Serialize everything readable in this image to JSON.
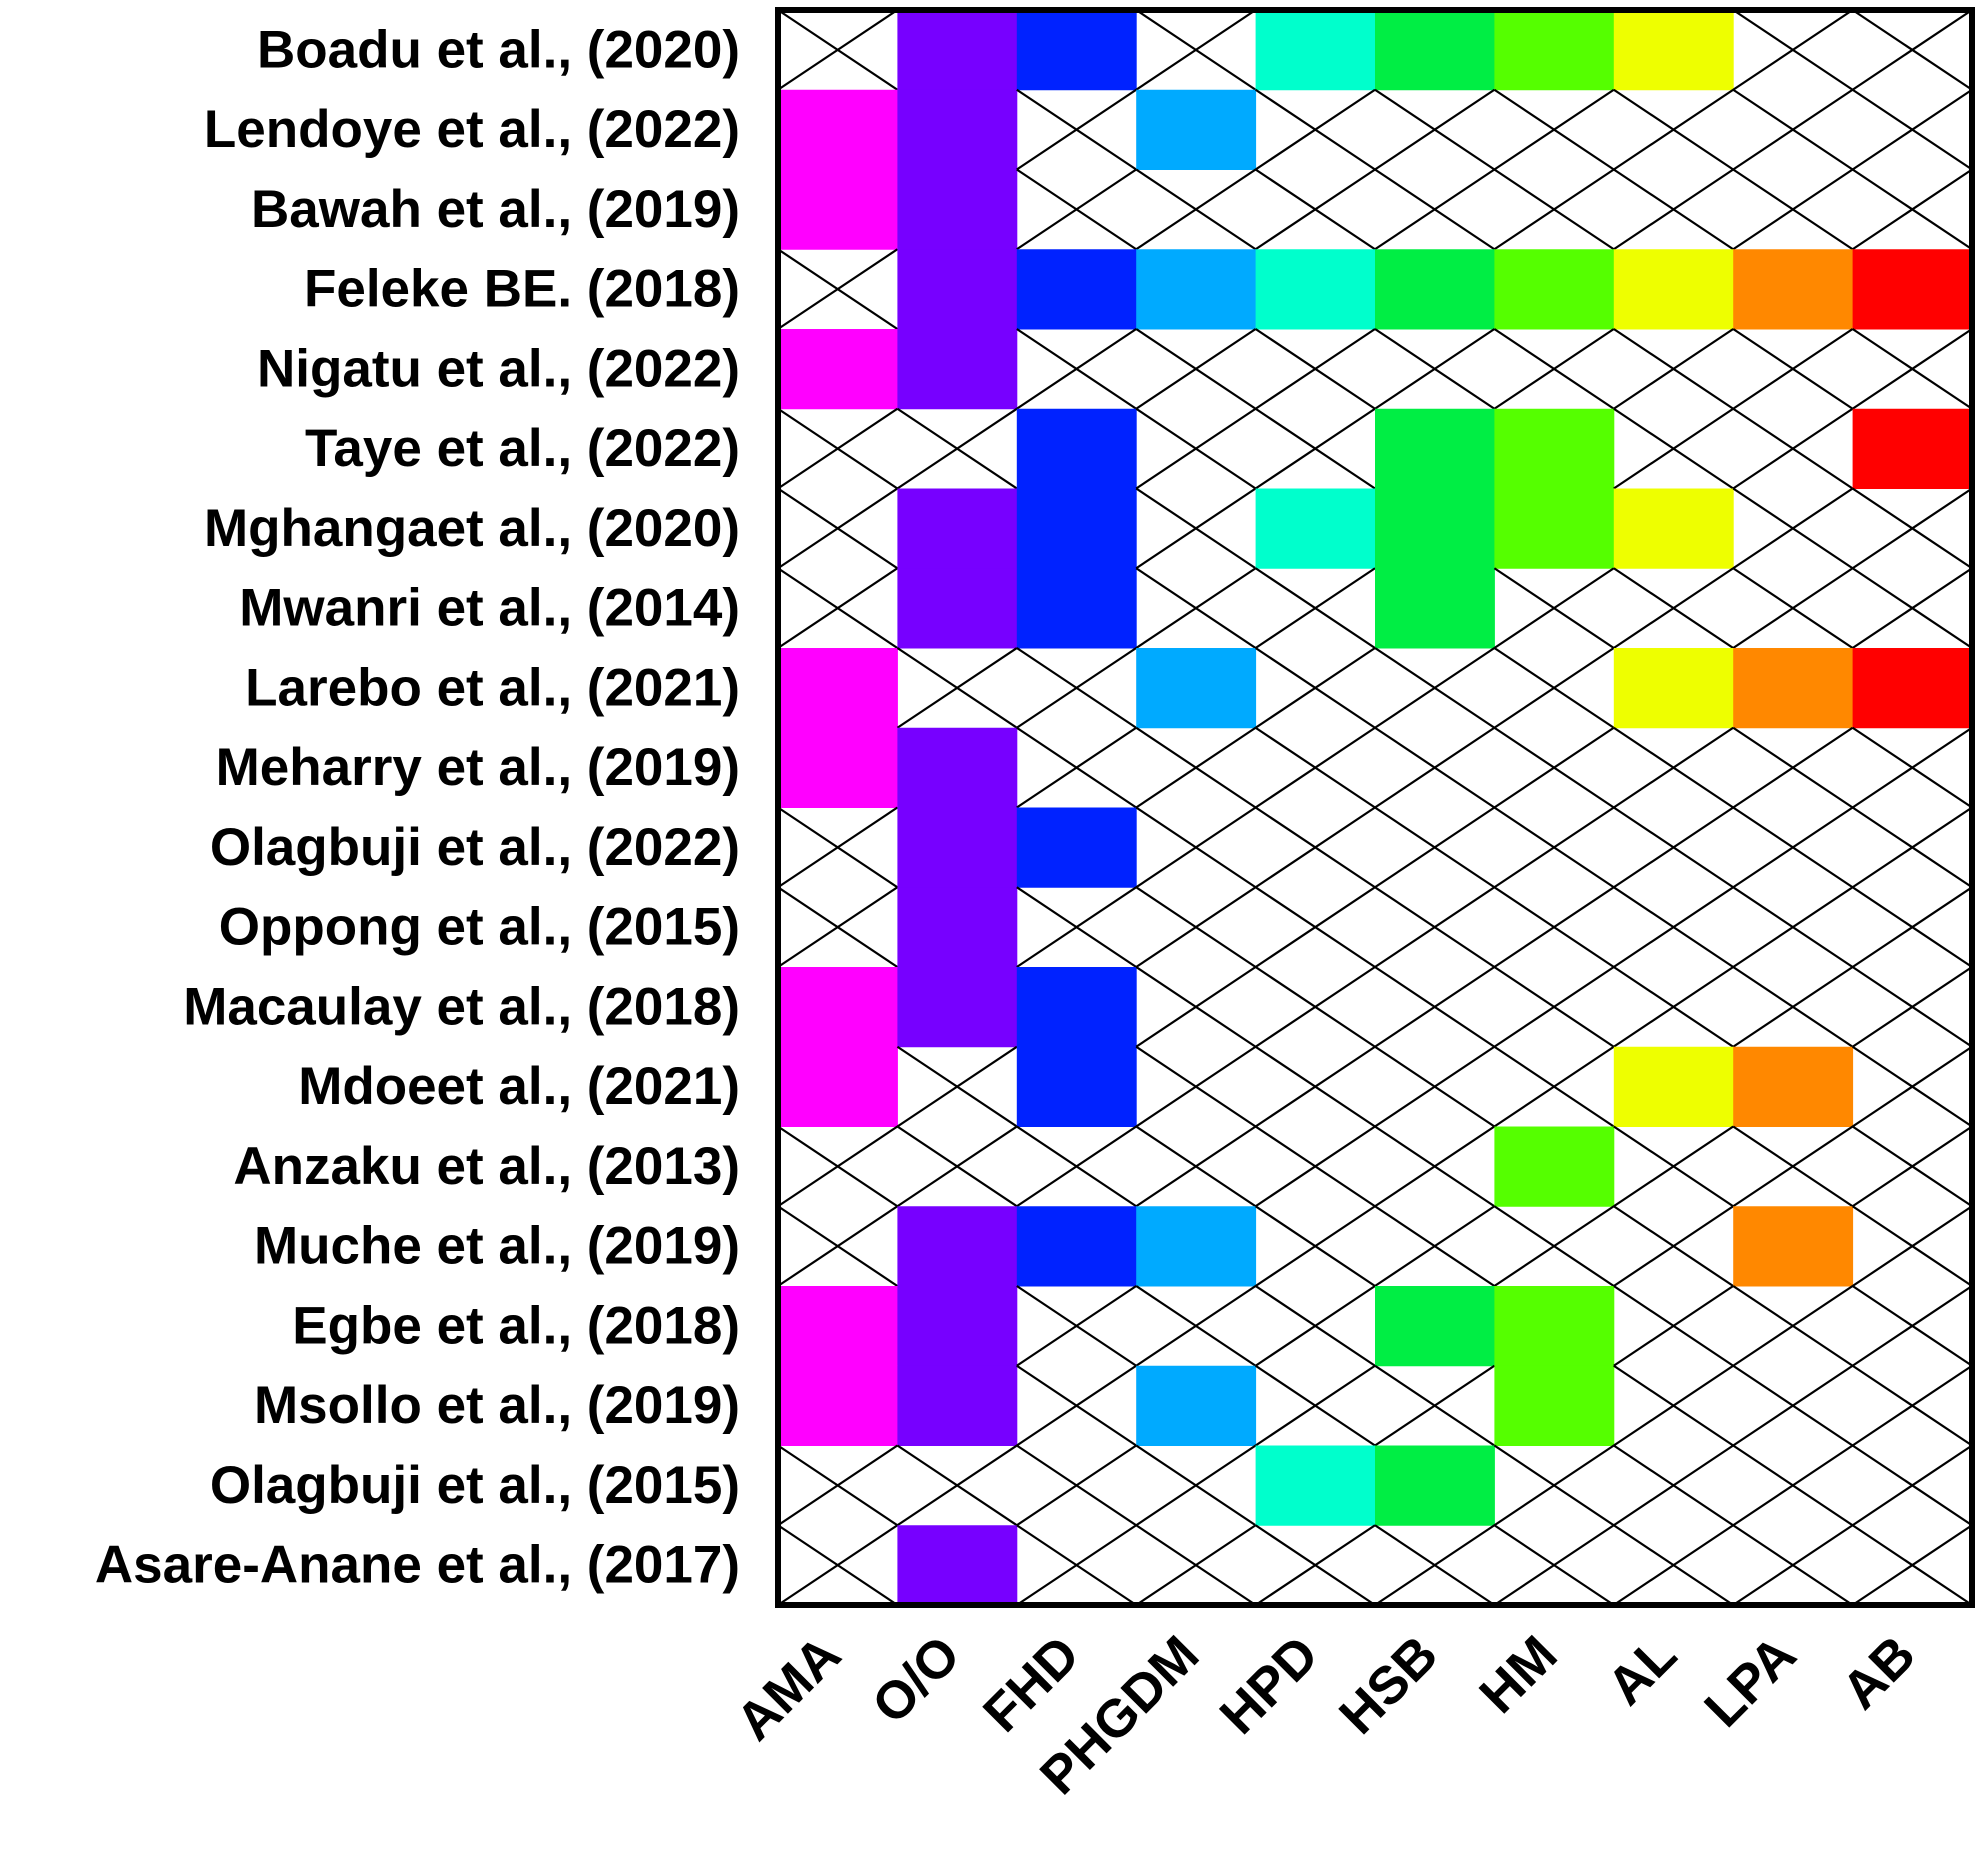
{
  "chart_data": {
    "type": "heatmap",
    "title": "",
    "xlabel": "",
    "ylabel": "",
    "grid": true,
    "columns": [
      "AMA",
      "O/O",
      "FHD",
      "PHGDM",
      "HPD",
      "HSB",
      "HM",
      "AL",
      "LPA",
      "AB"
    ],
    "column_colors": [
      "#ff00ff",
      "#7700ff",
      "#0022ff",
      "#00aaff",
      "#00ffcc",
      "#00ee44",
      "#55ff00",
      "#eeff00",
      "#ff8800",
      "#ff0000"
    ],
    "rows": [
      "Boadu et al., (2020)",
      "Lendoye et al., (2022)",
      "Bawah et al., (2019)",
      "Feleke BE. (2018)",
      "Nigatu et al., (2022)",
      "Taye et al., (2022)",
      "Mghangaet al., (2020)",
      "Mwanri et al., (2014)",
      "Larebo et al., (2021)",
      "Meharry et al., (2019)",
      "Olagbuji et al., (2022)",
      "Oppong et al., (2015)",
      "Macaulay et al., (2018)",
      "Mdoeet al., (2021)",
      "Anzaku et al., (2013)",
      "Muche et al., (2019)",
      "Egbe et al., (2018)",
      "Msollo et al., (2019)",
      "Olagbuji et al., (2015)",
      "Asare-Anane et al., (2017)"
    ],
    "values": [
      [
        0,
        1,
        1,
        0,
        1,
        1,
        1,
        1,
        0,
        0
      ],
      [
        1,
        1,
        0,
        1,
        0,
        0,
        0,
        0,
        0,
        0
      ],
      [
        1,
        1,
        0,
        0,
        0,
        0,
        0,
        0,
        0,
        0
      ],
      [
        0,
        1,
        1,
        1,
        1,
        1,
        1,
        1,
        1,
        1
      ],
      [
        1,
        1,
        0,
        0,
        0,
        0,
        0,
        0,
        0,
        0
      ],
      [
        0,
        0,
        1,
        0,
        0,
        1,
        1,
        0,
        0,
        1
      ],
      [
        0,
        1,
        1,
        0,
        1,
        1,
        1,
        1,
        0,
        0
      ],
      [
        0,
        1,
        1,
        0,
        0,
        1,
        0,
        0,
        0,
        0
      ],
      [
        1,
        0,
        0,
        1,
        0,
        0,
        0,
        1,
        1,
        1
      ],
      [
        1,
        1,
        0,
        0,
        0,
        0,
        0,
        0,
        0,
        0
      ],
      [
        0,
        1,
        1,
        0,
        0,
        0,
        0,
        0,
        0,
        0
      ],
      [
        0,
        1,
        0,
        0,
        0,
        0,
        0,
        0,
        0,
        0
      ],
      [
        1,
        1,
        1,
        0,
        0,
        0,
        0,
        0,
        0,
        0
      ],
      [
        1,
        0,
        1,
        0,
        0,
        0,
        0,
        1,
        1,
        0
      ],
      [
        0,
        0,
        0,
        0,
        0,
        0,
        1,
        0,
        0,
        0
      ],
      [
        0,
        1,
        1,
        1,
        0,
        0,
        0,
        0,
        1,
        0
      ],
      [
        1,
        1,
        0,
        0,
        0,
        1,
        1,
        0,
        0,
        0
      ],
      [
        1,
        1,
        0,
        1,
        0,
        0,
        1,
        0,
        0,
        0
      ],
      [
        0,
        0,
        0,
        0,
        1,
        1,
        0,
        0,
        0,
        0
      ],
      [
        0,
        1,
        0,
        0,
        0,
        0,
        0,
        0,
        0,
        0
      ]
    ]
  }
}
